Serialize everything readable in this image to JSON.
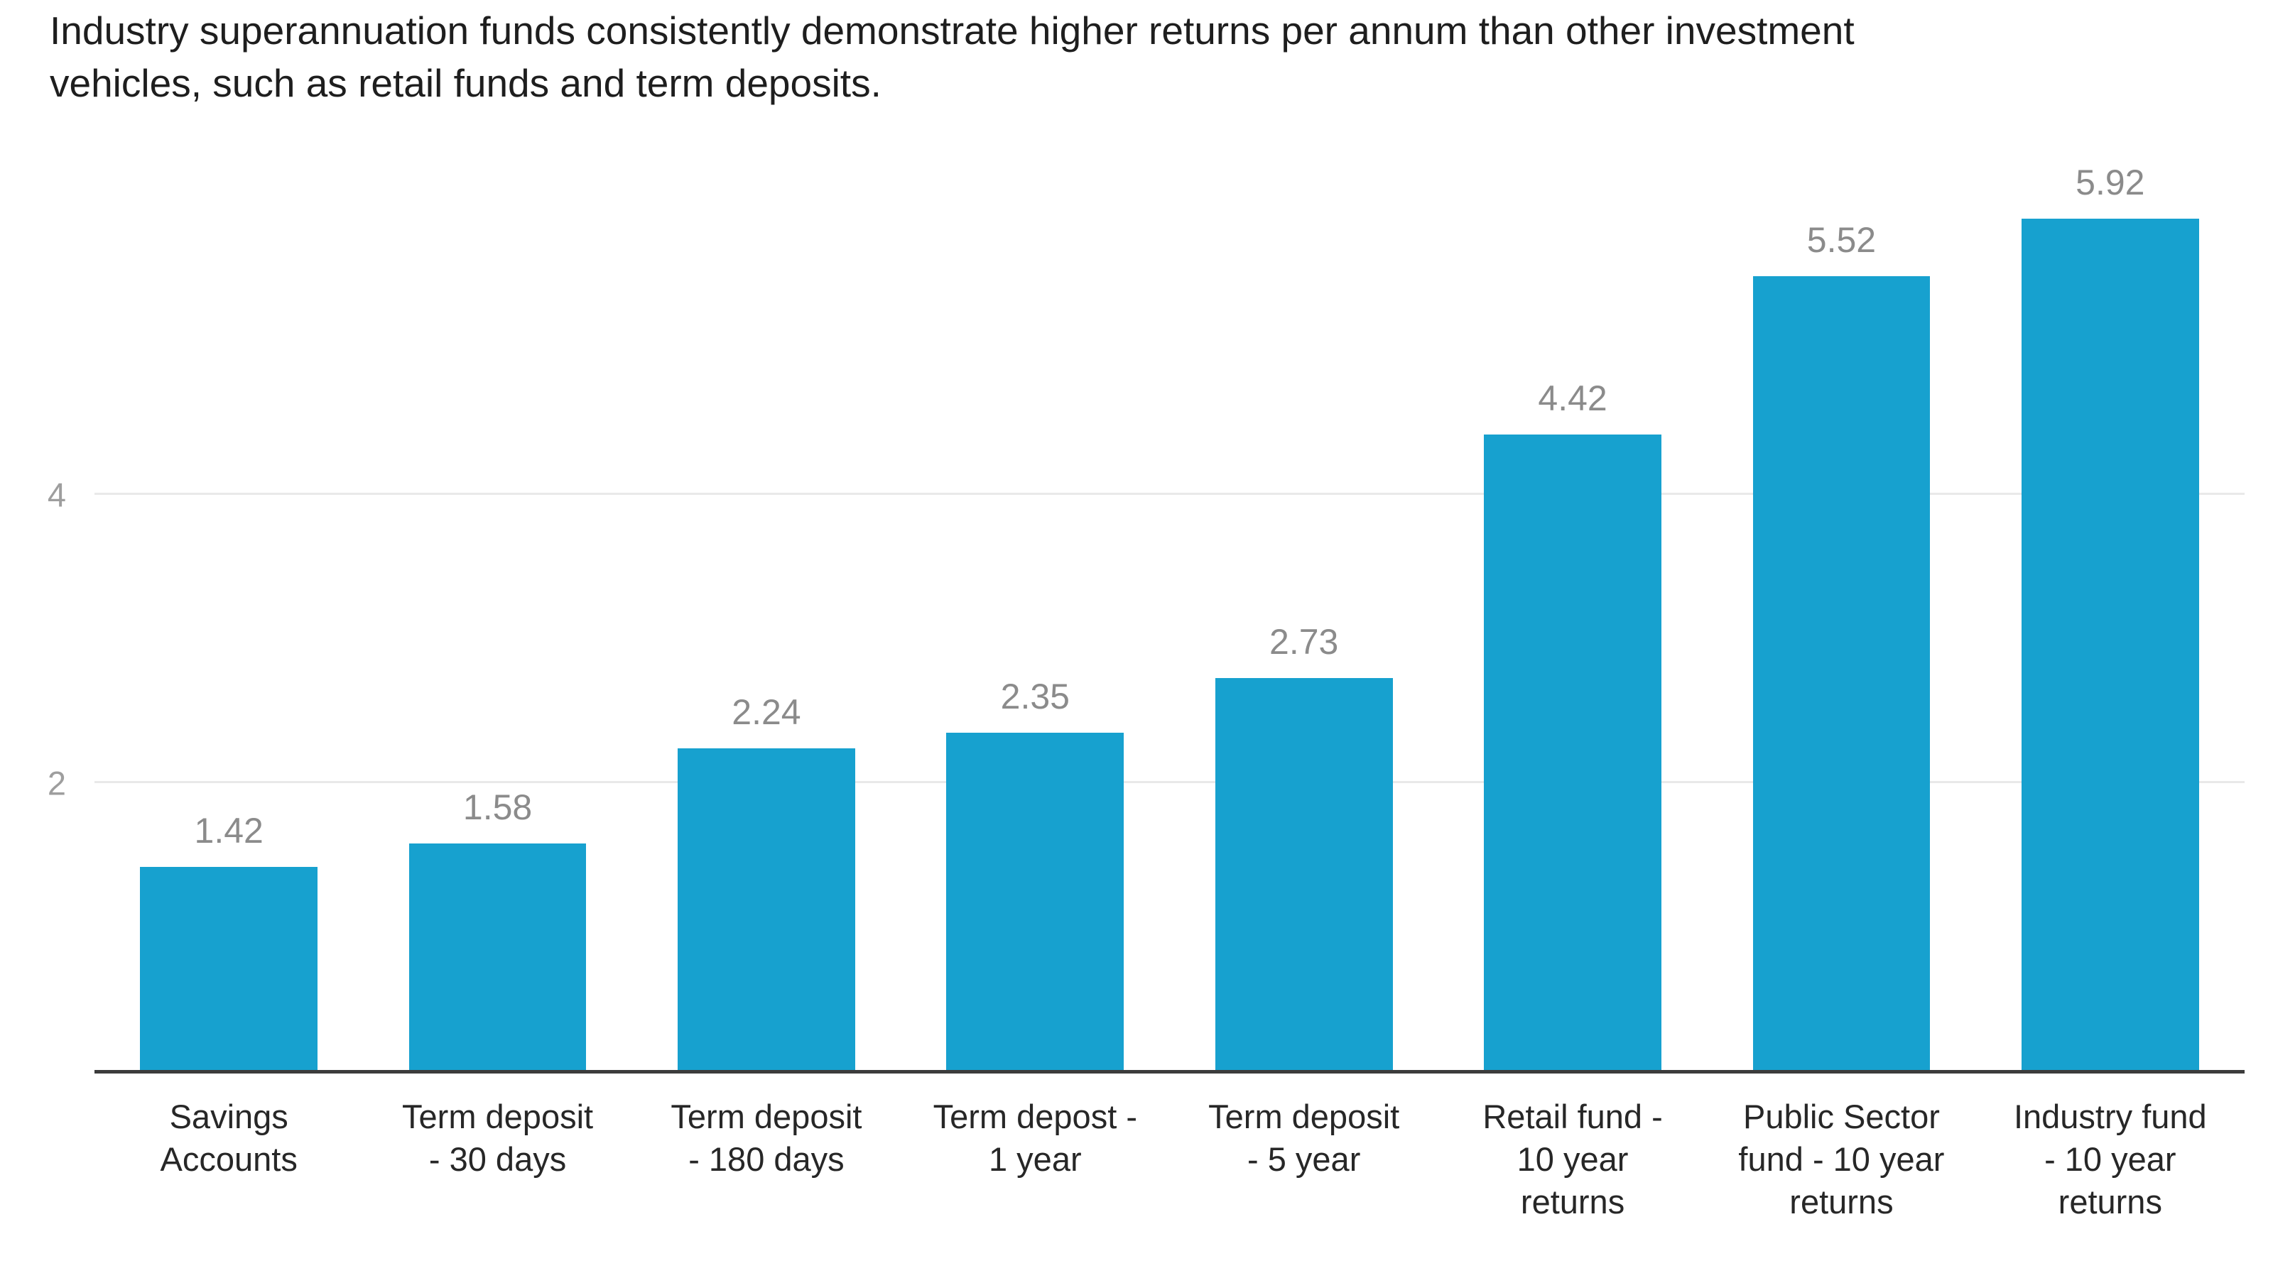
{
  "title": "Industry superannuation funds consistently demonstrate higher returns per annum than other investment\nvehicles, such as retail funds and term deposits.",
  "chart_data": {
    "type": "bar",
    "title": "Industry superannuation funds consistently demonstrate higher returns per annum than other investment vehicles, such as retail funds and term deposits.",
    "categories": [
      "Savings Accounts",
      "Term deposit - 30 days",
      "Term deposit - 180 days",
      "Term depost - 1 year",
      "Term deposit - 5 year",
      "Retail fund - 10 year returns",
      "Public Sector fund - 10 year returns",
      "Industry fund - 10 year returns"
    ],
    "tick_labels": [
      "Savings\nAccounts",
      "Term deposit\n- 30 days",
      "Term deposit\n- 180 days",
      "Term depost -\n1 year",
      "Term deposit\n- 5 year",
      "Retail fund -\n10 year\nreturns",
      "Public Sector\nfund - 10 year\nreturns",
      "Industry fund\n- 10 year\nreturns"
    ],
    "values": [
      1.42,
      1.58,
      2.24,
      2.35,
      2.73,
      4.42,
      5.52,
      5.92
    ],
    "value_labels": [
      "1.42",
      "1.58",
      "2.24",
      "2.35",
      "2.73",
      "4.42",
      "5.52",
      "5.92"
    ],
    "xlabel": "",
    "ylabel": "",
    "yticks": [
      2,
      4
    ],
    "ylim": [
      0,
      6.45
    ],
    "grid": "horizontal",
    "legend": "none",
    "bar_color": "#17a1cf"
  },
  "colors": {
    "bar": "#17a1cf",
    "title_text": "#1e1e1e",
    "value_label_text": "#8b8b8b",
    "ytick_text": "#9e9e9e",
    "category_text": "#272727",
    "gridline": "#e9e9e9",
    "axis_line": "#3c3c3c",
    "background": "#ffffff"
  }
}
